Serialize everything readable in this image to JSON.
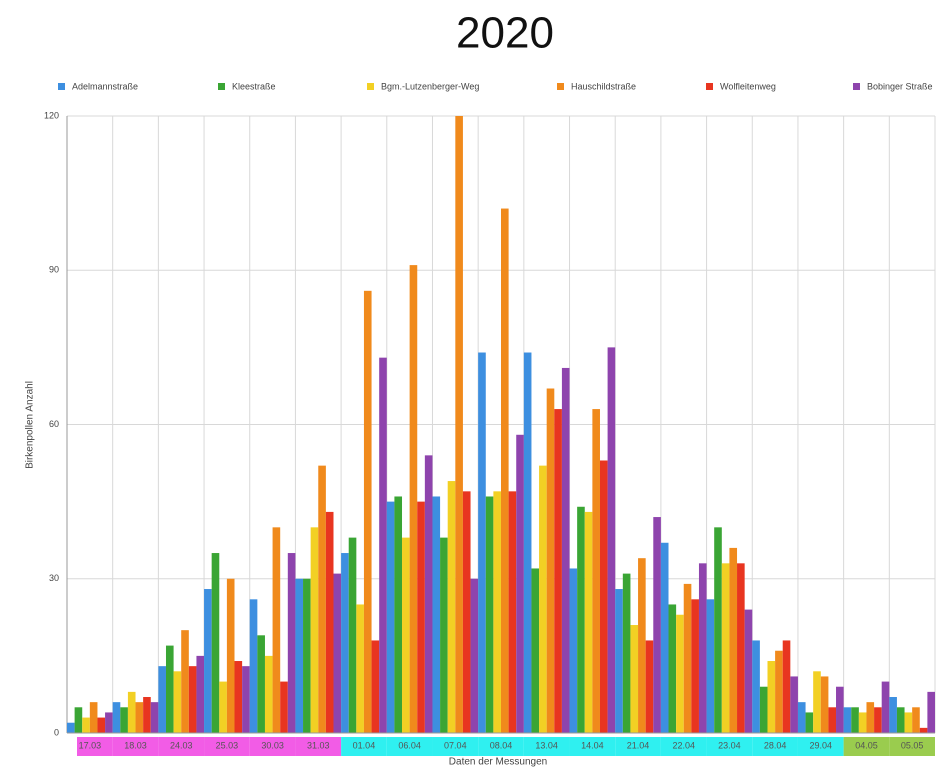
{
  "chart_data": {
    "type": "bar",
    "title": "2020",
    "y_label": "Birkenpollen Anzahl",
    "x_label": "Daten der Messungen",
    "categories": [
      "17.03",
      "18.03",
      "24.03",
      "25.03",
      "30.03",
      "31.03",
      "01.04",
      "06.04",
      "07.04",
      "08.04",
      "13.04",
      "14.04",
      "21.04",
      "22.04",
      "23.04",
      "28.04",
      "29.04",
      "04.05",
      "05.05"
    ],
    "category_colors": [
      "#f25ce6",
      "#f25ce6",
      "#f25ce6",
      "#f25ce6",
      "#f25ce6",
      "#f25ce6",
      "#2ff0f0",
      "#2ff0f0",
      "#2ff0f0",
      "#2ff0f0",
      "#2ff0f0",
      "#2ff0f0",
      "#2ff0f0",
      "#2ff0f0",
      "#2ff0f0",
      "#2ff0f0",
      "#2ff0f0",
      "#9acc4e",
      "#9acc4e"
    ],
    "series": [
      {
        "name": "Adelmannstraße",
        "color": "#3d8fe0",
        "values": [
          2,
          6,
          13,
          28,
          26,
          30,
          35,
          45,
          46,
          74,
          74,
          32,
          28,
          37,
          26,
          18,
          6,
          5,
          7
        ]
      },
      {
        "name": "Kleestraße",
        "color": "#3aa534",
        "values": [
          5,
          5,
          17,
          35,
          19,
          30,
          38,
          46,
          38,
          46,
          32,
          44,
          31,
          25,
          40,
          9,
          4,
          5,
          5
        ]
      },
      {
        "name": "Bgm.-Lutzenberger-Weg",
        "color": "#f2d024",
        "values": [
          3,
          8,
          12,
          10,
          15,
          40,
          25,
          38,
          49,
          47,
          52,
          43,
          21,
          23,
          33,
          14,
          12,
          4,
          4
        ]
      },
      {
        "name": "Hauschildstraße",
        "color": "#f08a1c",
        "values": [
          6,
          6,
          20,
          30,
          40,
          52,
          86,
          91,
          120,
          102,
          67,
          63,
          34,
          29,
          36,
          16,
          11,
          6,
          5
        ]
      },
      {
        "name": "Wolfleitenweg",
        "color": "#e83520",
        "values": [
          3,
          7,
          13,
          14,
          10,
          43,
          18,
          45,
          47,
          47,
          63,
          53,
          18,
          26,
          33,
          18,
          5,
          5,
          1
        ]
      },
      {
        "name": "Bobinger Straße",
        "color": "#8e44ad",
        "values": [
          4,
          6,
          15,
          13,
          35,
          31,
          73,
          54,
          30,
          58,
          71,
          75,
          42,
          33,
          24,
          11,
          9,
          10,
          8
        ]
      }
    ],
    "ylim": [
      0,
      120
    ],
    "yticks": [
      0,
      30,
      60,
      90,
      120
    ],
    "grid": true
  }
}
